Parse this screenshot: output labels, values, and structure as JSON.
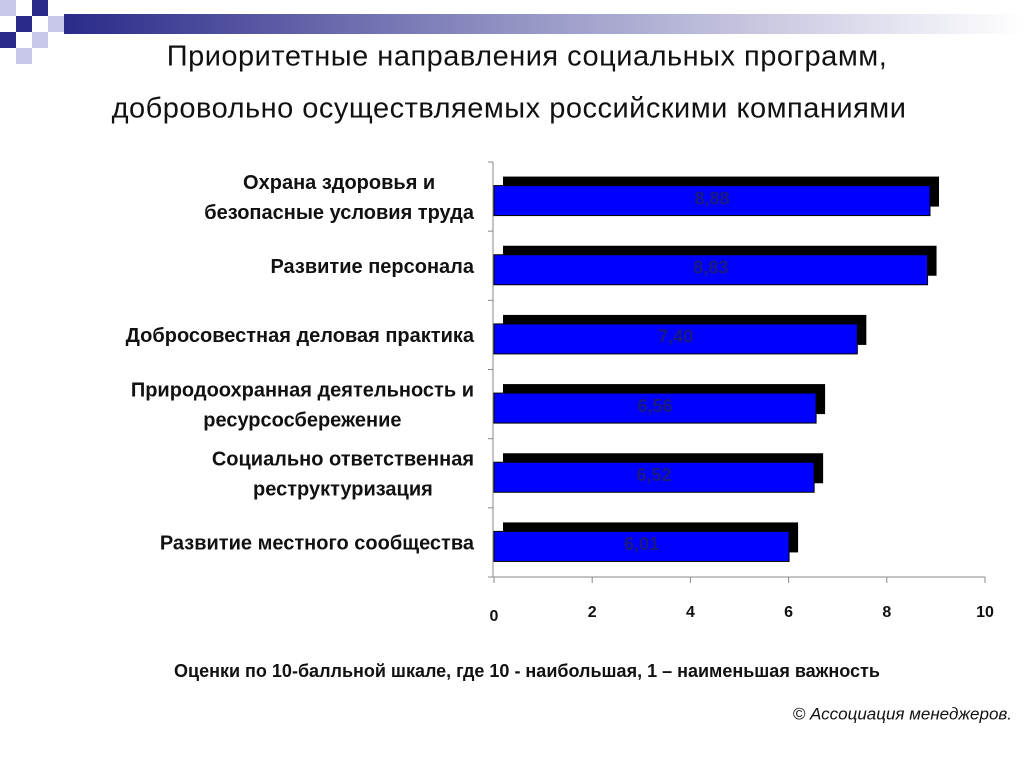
{
  "chart_data": {
    "type": "bar",
    "orientation": "horizontal",
    "title": [
      "Приоритетные направления социальных программ,",
      "добровольно осуществляемых российскими компаниями"
    ],
    "categories": [
      [
        "Охрана здоровья и",
        "безопасные условия труда"
      ],
      [
        "Развитие персонала"
      ],
      [
        "Добросовестная деловая практика"
      ],
      [
        "Природоохранная деятельность и",
        "ресурсосбережение"
      ],
      [
        "Социально ответственная",
        "реструктуризация"
      ],
      [
        "Развитие местного сообщества"
      ]
    ],
    "values": [
      8.88,
      8.83,
      7.4,
      6.56,
      6.52,
      6.01
    ],
    "value_labels": [
      "8,88",
      "8,83",
      "7,40",
      "6,56",
      "6,52",
      "6,01"
    ],
    "color": "#0000ff",
    "xlim": [
      0,
      10
    ],
    "xticks": [
      0,
      2,
      4,
      6,
      8,
      10
    ],
    "xlabel": "Оценки по 10-балльной шкале, где 10 - наибольшая, 1 – наименьшая важность",
    "note": "© Ассоциация менеджеров."
  }
}
